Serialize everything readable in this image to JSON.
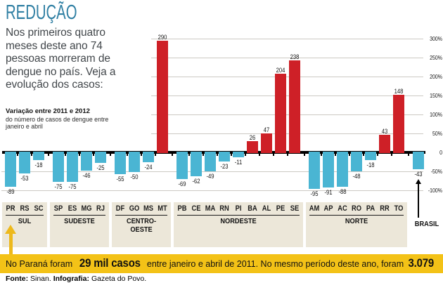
{
  "header": {
    "title": "REDUÇÃO",
    "intro": "Nos primeiros quatro meses deste ano 74 pessoas morreram de dengue no país. Veja a evolução dos casos:"
  },
  "chart_data": {
    "type": "bar",
    "title": "Variação entre 2011 e 2012",
    "subtitle": "do número de casos de dengue entre janeiro e abril",
    "unit": "%",
    "ylim": [
      -100,
      300
    ],
    "grid": true,
    "yticks": [
      {
        "label": "300%",
        "value": 300
      },
      {
        "label": "250%",
        "value": 250
      },
      {
        "label": "200%",
        "value": 200
      },
      {
        "label": "150%",
        "value": 150
      },
      {
        "label": "100%",
        "value": 100
      },
      {
        "label": "50%",
        "value": 50
      },
      {
        "label": "0",
        "value": 0
      },
      {
        "label": "-50%",
        "value": -50
      },
      {
        "label": "-100%",
        "value": -100
      }
    ],
    "colors": {
      "positive": "#ce2027",
      "negative": "#4ab5d3"
    },
    "groups": [
      {
        "region": "SUL",
        "block": true,
        "states": [
          {
            "code": "PR",
            "value": -89
          },
          {
            "code": "RS",
            "value": -53
          },
          {
            "code": "SC",
            "value": -18
          }
        ]
      },
      {
        "region": "SUDESTE",
        "block": true,
        "states": [
          {
            "code": "SP",
            "value": -75
          },
          {
            "code": "ES",
            "value": -75
          },
          {
            "code": "MG",
            "value": -46
          },
          {
            "code": "RJ",
            "value": -25
          }
        ]
      },
      {
        "region": "CENTRO-OESTE",
        "block": true,
        "states": [
          {
            "code": "DF",
            "value": -55
          },
          {
            "code": "GO",
            "value": -50
          },
          {
            "code": "MS",
            "value": -24
          },
          {
            "code": "MT",
            "value": 290
          }
        ]
      },
      {
        "region": "NORDESTE",
        "block": true,
        "states": [
          {
            "code": "PB",
            "value": -69
          },
          {
            "code": "CE",
            "value": -62
          },
          {
            "code": "MA",
            "value": -49
          },
          {
            "code": "RN",
            "value": -23
          },
          {
            "code": "PI",
            "value": -11
          },
          {
            "code": "BA",
            "value": 26
          },
          {
            "code": "AL",
            "value": 47
          },
          {
            "code": "PE",
            "value": 204
          },
          {
            "code": "SE",
            "value": 238
          }
        ]
      },
      {
        "region": "NORTE",
        "block": true,
        "states": [
          {
            "code": "AM",
            "value": -95
          },
          {
            "code": "AP",
            "value": -91
          },
          {
            "code": "AC",
            "value": -88
          },
          {
            "code": "RO",
            "value": -48
          },
          {
            "code": "PA",
            "value": -18
          },
          {
            "code": "RR",
            "value": 43
          },
          {
            "code": "TO",
            "value": 148
          }
        ]
      },
      {
        "region": "BRASIL",
        "block": false,
        "states": [
          {
            "code": "",
            "value": -43
          }
        ]
      }
    ],
    "annotations": [
      {
        "target": "PR",
        "type": "arrow-up",
        "color": "#edb91c"
      },
      {
        "target": "BRASIL",
        "type": "arrow-up",
        "color": "#000000"
      }
    ]
  },
  "banner": {
    "bg_color": "#f3c217",
    "text_1": "No Paraná foram ",
    "highlight_1": "29 mil casos",
    "text_2": " entre janeiro e abril de 2011. No mesmo período deste ano, foram ",
    "highlight_2": "3.079"
  },
  "footer": {
    "source_label": "Fonte:",
    "source": " Sinan. ",
    "credit_label": "Infografia:",
    "credit": " Gazeta do Povo."
  }
}
